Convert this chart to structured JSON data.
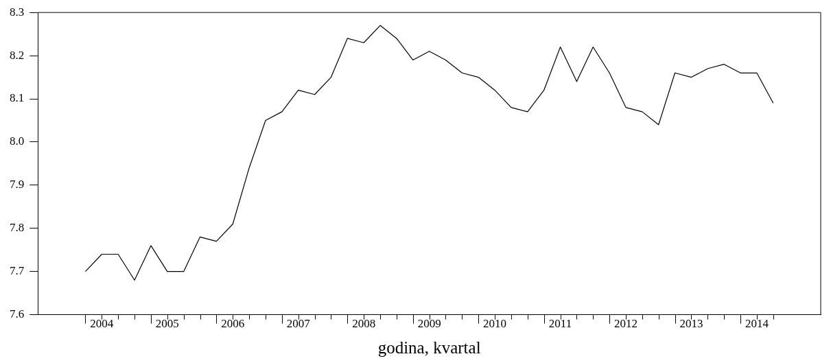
{
  "chart_data": {
    "type": "line",
    "xlabel": "godina, kvartal",
    "categories": [
      null,
      "2004",
      null,
      null,
      null,
      "2005",
      null,
      null,
      null,
      "2006",
      null,
      null,
      null,
      "2007",
      null,
      null,
      null,
      "2008",
      null,
      null,
      null,
      "2009",
      null,
      null,
      null,
      "2010",
      null,
      null,
      null,
      "2011",
      null,
      null,
      null,
      "2012",
      null,
      null,
      null,
      "2013",
      null,
      null,
      null,
      "2014",
      null
    ],
    "series": [
      {
        "color": "#000000",
        "values": [
          7.7,
          7.74,
          7.74,
          7.68,
          7.76,
          7.7,
          7.7,
          7.78,
          7.77,
          7.81,
          7.94,
          8.05,
          8.07,
          8.12,
          8.11,
          8.15,
          8.24,
          8.23,
          8.27,
          8.24,
          8.19,
          8.21,
          8.19,
          8.16,
          8.15,
          8.12,
          8.08,
          8.07,
          8.12,
          8.22,
          8.14,
          8.22,
          8.16,
          8.08,
          8.07,
          8.04,
          8.16,
          8.15,
          8.17,
          8.18,
          8.16,
          8.16,
          8.09
        ]
      }
    ],
    "ylim": [
      7.6,
      8.3
    ],
    "yticks": [
      7.6,
      7.7,
      7.8,
      7.9,
      {
        "value": 8,
        "label": "8.0"
      },
      8.1,
      8.2,
      8.3
    ],
    "grid": false,
    "legend": false,
    "marker": "none",
    "line_style": "solid"
  }
}
